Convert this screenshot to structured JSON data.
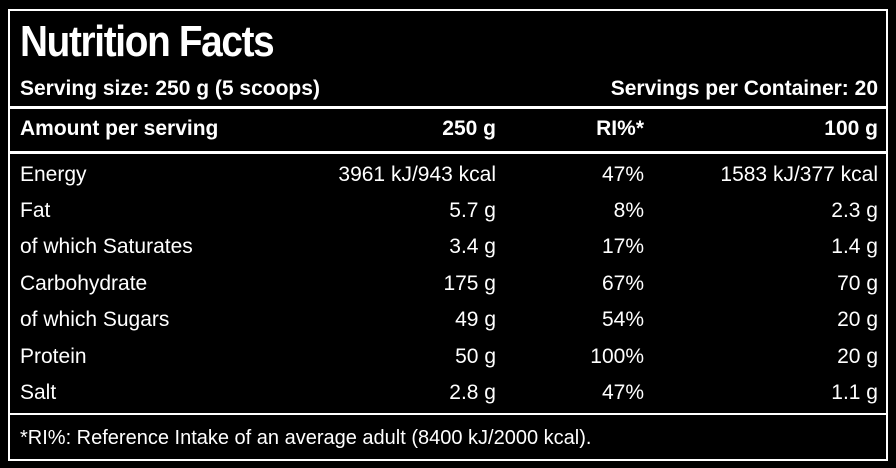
{
  "title": "Nutrition Facts",
  "serving_size": "Serving size: 250 g (5 scoops)",
  "servings_per_container": "Servings per Container: 20",
  "header": {
    "amount": "Amount per serving",
    "col_250g": "250 g",
    "col_ri": "RI%*",
    "col_100g": "100 g"
  },
  "rows": [
    {
      "name": "Energy",
      "per_250g": "3961 kJ/943 kcal",
      "ri": "47%",
      "per_100g": "1583 kJ/377 kcal"
    },
    {
      "name": "Fat",
      "per_250g": "5.7 g",
      "ri": "8%",
      "per_100g": "2.3 g"
    },
    {
      "name": "of which Saturates",
      "per_250g": "3.4 g",
      "ri": "17%",
      "per_100g": "1.4 g"
    },
    {
      "name": "Carbohydrate",
      "per_250g": "175 g",
      "ri": "67%",
      "per_100g": "70 g"
    },
    {
      "name": "of which Sugars",
      "per_250g": "49 g",
      "ri": "54%",
      "per_100g": "20 g"
    },
    {
      "name": "Protein",
      "per_250g": "50 g",
      "ri": "100%",
      "per_100g": "20 g"
    },
    {
      "name": "Salt",
      "per_250g": "2.8 g",
      "ri": "47%",
      "per_100g": "1.1 g"
    }
  ],
  "footnote": "*RI%: Reference Intake of an average adult (8400 kJ/2000 kcal)."
}
